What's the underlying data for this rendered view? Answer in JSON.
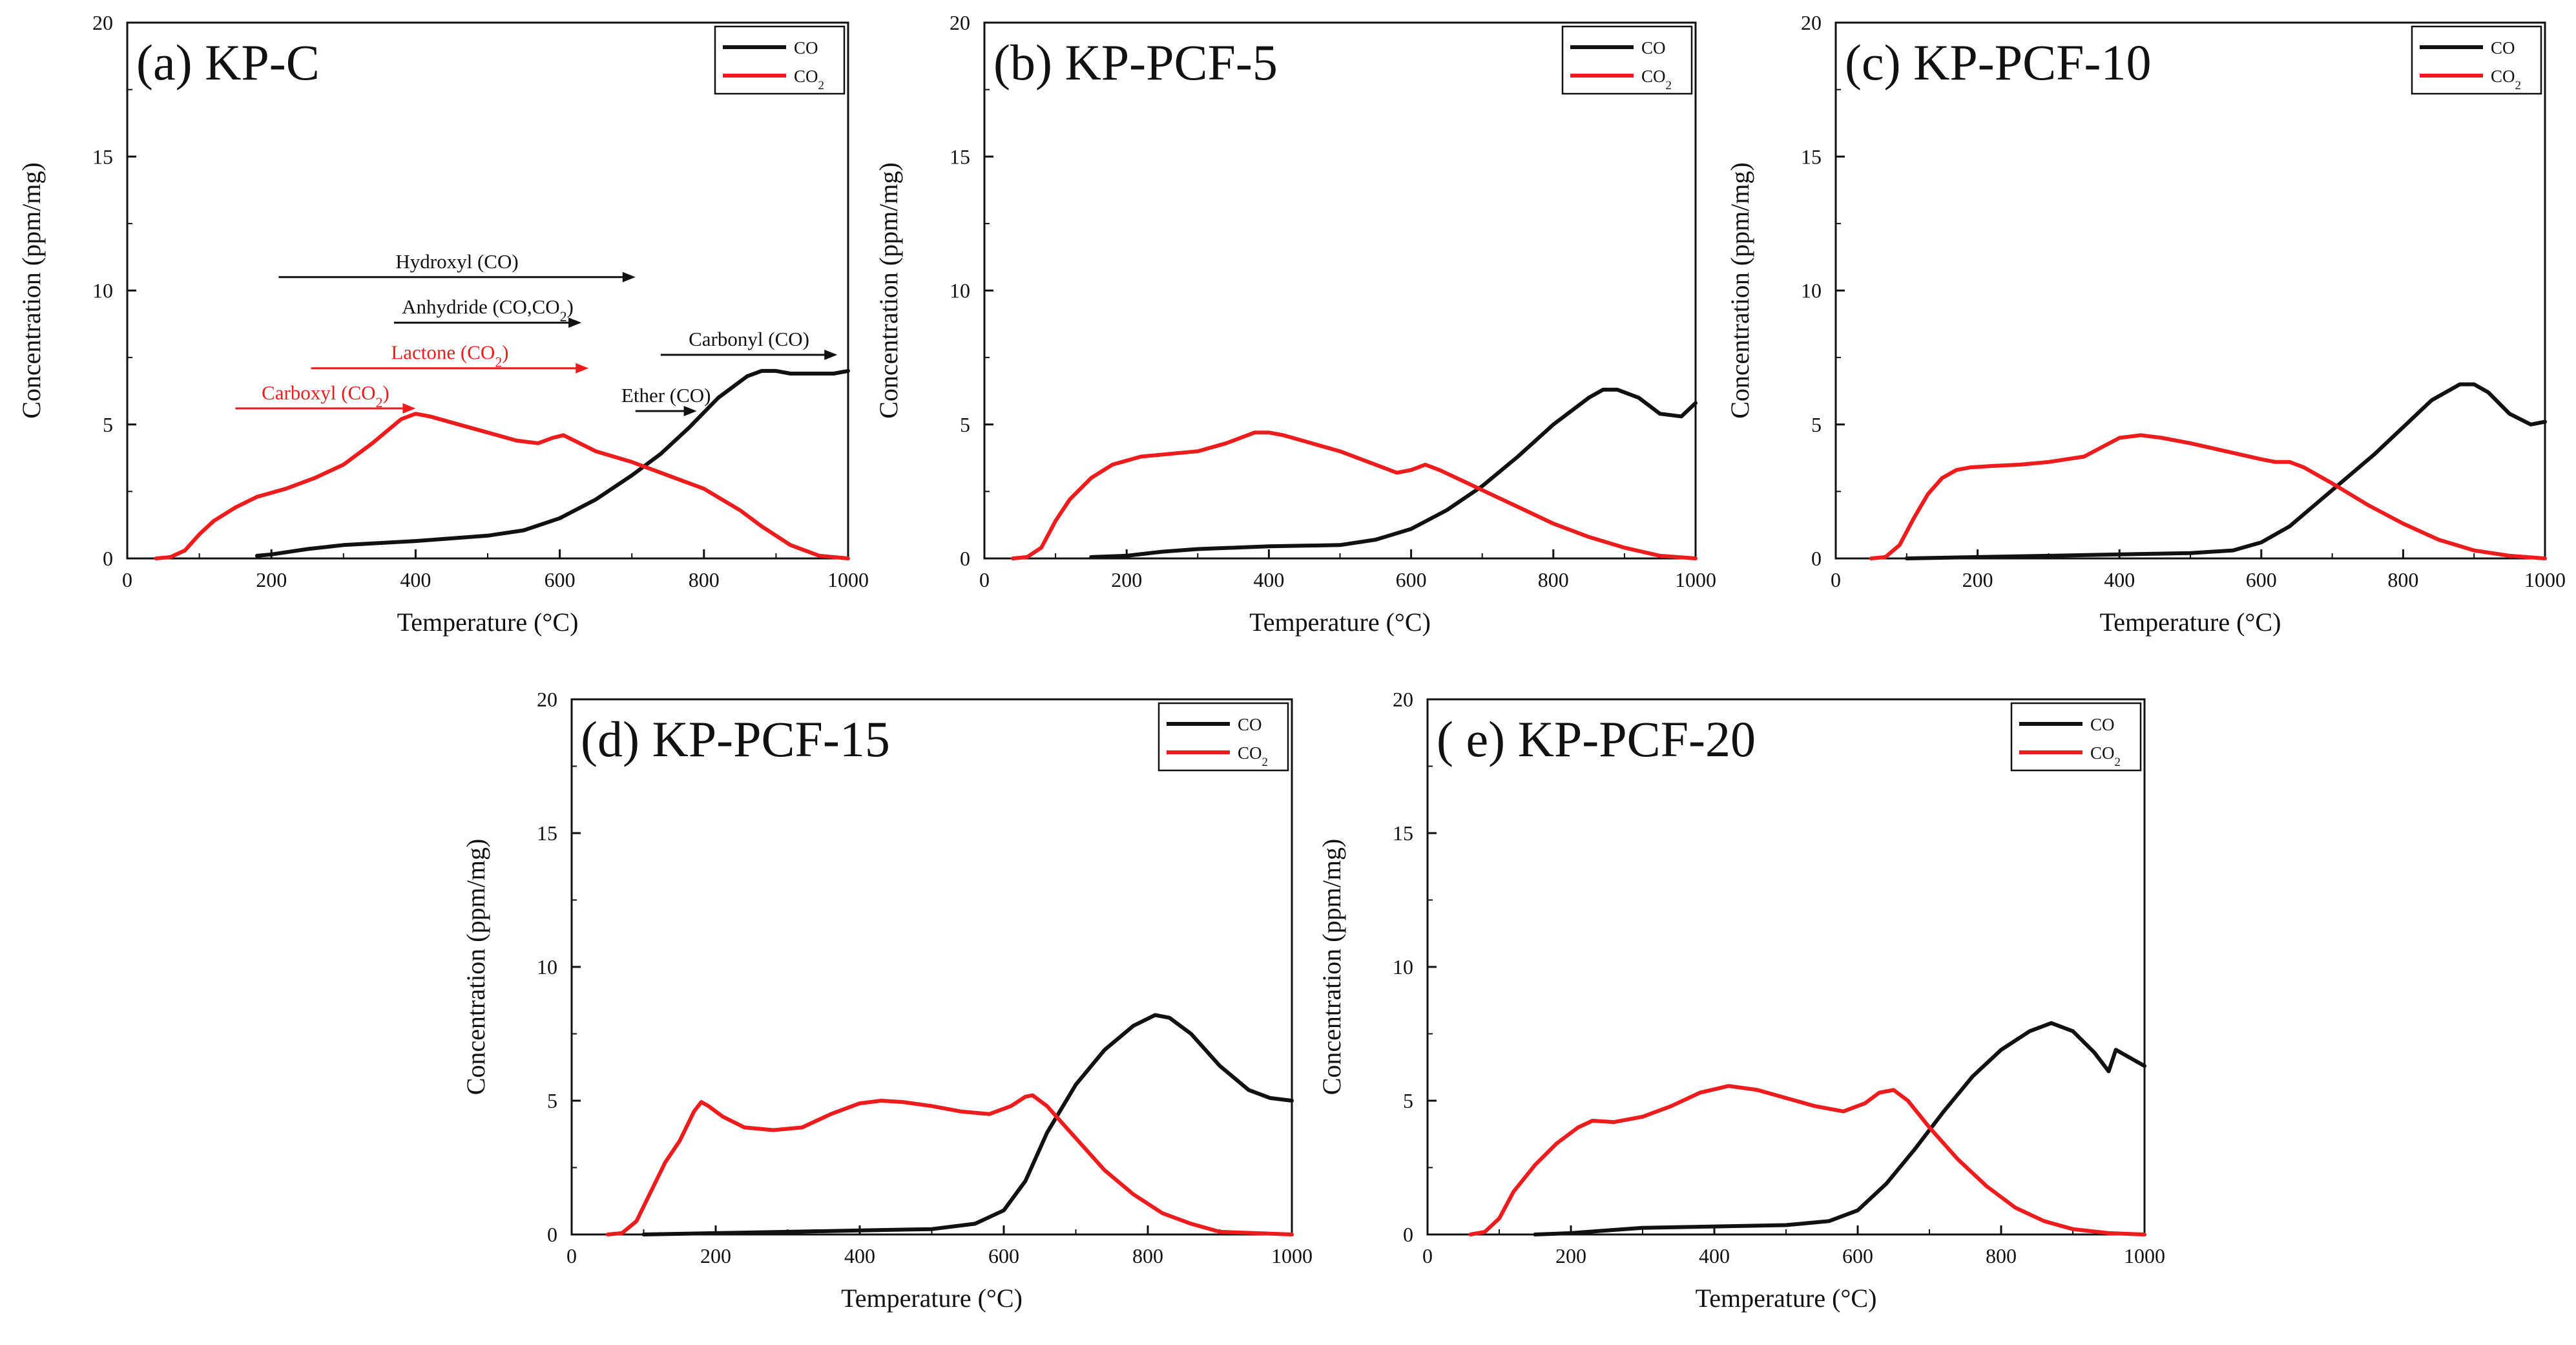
{
  "colors": {
    "co": "#111111",
    "co2": "#ee1c1c",
    "axis": "#111111",
    "annotation_black": "#111111",
    "annotation_red": "#ee1c1c"
  },
  "chart_data": [
    {
      "type": "line",
      "title": "(a) KP-C",
      "xlabel": "Temperature (°C)",
      "ylabel": "Concentration (ppm/mg)",
      "xlim": [
        0,
        1000
      ],
      "ylim": [
        0,
        20
      ],
      "xticks": [
        "0",
        "200",
        "400",
        "600",
        "800",
        "1000"
      ],
      "yticks": [
        "0",
        "5",
        "10",
        "15",
        "20"
      ],
      "legend": [
        "CO",
        "CO2"
      ],
      "legend_position": "top-right",
      "series": [
        {
          "name": "CO",
          "color": "#111111",
          "x": [
            180,
            200,
            250,
            300,
            400,
            500,
            550,
            600,
            650,
            700,
            740,
            780,
            820,
            860,
            880,
            900,
            920,
            940,
            960,
            980,
            1000
          ],
          "y": [
            0.1,
            0.15,
            0.35,
            0.5,
            0.65,
            0.85,
            1.05,
            1.5,
            2.2,
            3.1,
            3.9,
            4.9,
            6.0,
            6.8,
            7.0,
            7.0,
            6.9,
            6.9,
            6.9,
            6.9,
            7.0
          ]
        },
        {
          "name": "CO2",
          "color": "#ee1c1c",
          "x": [
            40,
            60,
            80,
            100,
            120,
            150,
            180,
            220,
            260,
            300,
            340,
            380,
            400,
            420,
            460,
            500,
            540,
            570,
            590,
            605,
            620,
            650,
            700,
            750,
            800,
            850,
            880,
            920,
            960,
            1000
          ],
          "y": [
            0,
            0.05,
            0.3,
            0.9,
            1.4,
            1.9,
            2.3,
            2.6,
            3.0,
            3.5,
            4.3,
            5.2,
            5.4,
            5.3,
            5.0,
            4.7,
            4.4,
            4.3,
            4.5,
            4.6,
            4.4,
            4.0,
            3.6,
            3.1,
            2.6,
            1.8,
            1.2,
            0.5,
            0.1,
            0
          ]
        }
      ],
      "annotations": [
        {
          "text": "Hydroxyl (CO)",
          "color": "#111111",
          "x_start": 210,
          "x_end": 705,
          "y": 10.5
        },
        {
          "text": "Anhydride (CO,CO₂)",
          "color": "#111111",
          "x_start": 370,
          "x_end": 630,
          "y": 8.8
        },
        {
          "text": "Lactone (CO₂)",
          "color": "#ee1c1c",
          "x_start": 255,
          "x_end": 640,
          "y": 7.1
        },
        {
          "text": "Carboxyl (CO₂)",
          "color": "#ee1c1c",
          "x_start": 150,
          "x_end": 400,
          "y": 5.6
        },
        {
          "text": "Ether (CO)",
          "color": "#111111",
          "x_start": 705,
          "x_end": 790,
          "y": 5.5
        },
        {
          "text": "Carbonyl (CO)",
          "color": "#111111",
          "x_start": 740,
          "x_end": 985,
          "y": 7.6
        }
      ]
    },
    {
      "type": "line",
      "title": "(b) KP-PCF-5",
      "xlabel": "Temperature (°C)",
      "ylabel": "Concentration (ppm/mg)",
      "xlim": [
        0,
        1000
      ],
      "ylim": [
        0,
        20
      ],
      "xticks": [
        "0",
        "200",
        "400",
        "600",
        "800",
        "1000"
      ],
      "yticks": [
        "0",
        "5",
        "10",
        "15",
        "20"
      ],
      "legend": [
        "CO",
        "CO2"
      ],
      "legend_position": "top-right",
      "series": [
        {
          "name": "CO",
          "color": "#111111",
          "x": [
            150,
            200,
            250,
            300,
            400,
            500,
            550,
            600,
            650,
            700,
            750,
            800,
            850,
            870,
            890,
            920,
            950,
            980,
            1000
          ],
          "y": [
            0.05,
            0.1,
            0.25,
            0.35,
            0.45,
            0.5,
            0.7,
            1.1,
            1.8,
            2.7,
            3.8,
            5.0,
            6.0,
            6.3,
            6.3,
            6.0,
            5.4,
            5.3,
            5.8
          ]
        },
        {
          "name": "CO2",
          "color": "#ee1c1c",
          "x": [
            40,
            60,
            80,
            100,
            120,
            150,
            180,
            220,
            260,
            300,
            340,
            380,
            400,
            420,
            460,
            500,
            540,
            580,
            600,
            620,
            640,
            680,
            720,
            760,
            800,
            850,
            900,
            950,
            1000
          ],
          "y": [
            0,
            0.05,
            0.4,
            1.4,
            2.2,
            3.0,
            3.5,
            3.8,
            3.9,
            4.0,
            4.3,
            4.7,
            4.7,
            4.6,
            4.3,
            4.0,
            3.6,
            3.2,
            3.3,
            3.5,
            3.3,
            2.8,
            2.3,
            1.8,
            1.3,
            0.8,
            0.4,
            0.1,
            0
          ]
        }
      ]
    },
    {
      "type": "line",
      "title": "(c) KP-PCF-10",
      "xlabel": "Temperature (°C)",
      "ylabel": "Concentration (ppm/mg)",
      "xlim": [
        0,
        1000
      ],
      "ylim": [
        0,
        20
      ],
      "xticks": [
        "0",
        "200",
        "400",
        "600",
        "800",
        "1000"
      ],
      "yticks": [
        "0",
        "5",
        "10",
        "15",
        "20"
      ],
      "legend": [
        "CO",
        "CO2"
      ],
      "legend_position": "top-right",
      "series": [
        {
          "name": "CO",
          "color": "#111111",
          "x": [
            100,
            200,
            300,
            400,
            500,
            560,
            600,
            640,
            680,
            720,
            760,
            800,
            840,
            880,
            900,
            920,
            950,
            980,
            1000
          ],
          "y": [
            0,
            0.05,
            0.1,
            0.15,
            0.2,
            0.3,
            0.6,
            1.2,
            2.1,
            3.0,
            3.9,
            4.9,
            5.9,
            6.5,
            6.5,
            6.2,
            5.4,
            5.0,
            5.1
          ]
        },
        {
          "name": "CO2",
          "color": "#ee1c1c",
          "x": [
            50,
            70,
            90,
            110,
            130,
            150,
            170,
            190,
            220,
            260,
            300,
            350,
            400,
            430,
            460,
            500,
            550,
            600,
            620,
            640,
            660,
            700,
            750,
            800,
            850,
            900,
            950,
            1000
          ],
          "y": [
            0,
            0.05,
            0.5,
            1.5,
            2.4,
            3.0,
            3.3,
            3.4,
            3.45,
            3.5,
            3.6,
            3.8,
            4.5,
            4.6,
            4.5,
            4.3,
            4.0,
            3.7,
            3.6,
            3.6,
            3.4,
            2.8,
            2.0,
            1.3,
            0.7,
            0.3,
            0.1,
            0
          ]
        }
      ]
    },
    {
      "type": "line",
      "title": "(d) KP-PCF-15",
      "xlabel": "Temperature (°C)",
      "ylabel": "Concentration (ppm/mg)",
      "xlim": [
        0,
        1000
      ],
      "ylim": [
        0,
        20
      ],
      "xticks": [
        "0",
        "200",
        "400",
        "600",
        "800",
        "1000"
      ],
      "yticks": [
        "0",
        "5",
        "10",
        "15",
        "20"
      ],
      "legend": [
        "CO",
        "CO2"
      ],
      "legend_position": "top-right",
      "series": [
        {
          "name": "CO",
          "color": "#111111",
          "x": [
            100,
            200,
            300,
            400,
            500,
            560,
            600,
            630,
            660,
            700,
            740,
            780,
            810,
            830,
            860,
            900,
            940,
            970,
            1000
          ],
          "y": [
            0,
            0.05,
            0.1,
            0.15,
            0.2,
            0.4,
            0.9,
            2.0,
            3.8,
            5.6,
            6.9,
            7.8,
            8.2,
            8.1,
            7.5,
            6.3,
            5.4,
            5.1,
            5.0
          ]
        },
        {
          "name": "CO2",
          "color": "#ee1c1c",
          "x": [
            50,
            70,
            90,
            110,
            130,
            150,
            170,
            180,
            190,
            210,
            240,
            280,
            320,
            360,
            400,
            430,
            460,
            500,
            540,
            580,
            610,
            630,
            640,
            660,
            700,
            740,
            780,
            820,
            860,
            900,
            950,
            1000
          ],
          "y": [
            0,
            0.05,
            0.5,
            1.6,
            2.7,
            3.5,
            4.6,
            4.95,
            4.8,
            4.4,
            4.0,
            3.9,
            4.0,
            4.5,
            4.9,
            5.0,
            4.95,
            4.8,
            4.6,
            4.5,
            4.8,
            5.15,
            5.2,
            4.8,
            3.6,
            2.4,
            1.5,
            0.8,
            0.4,
            0.1,
            0.05,
            0
          ]
        }
      ]
    },
    {
      "type": "line",
      "title": "( e) KP-PCF-20",
      "xlabel": "Temperature (°C)",
      "ylabel": "Concentration (ppm/mg)",
      "xlim": [
        0,
        1000
      ],
      "ylim": [
        0,
        20
      ],
      "xticks": [
        "0",
        "200",
        "400",
        "600",
        "800",
        "1000"
      ],
      "yticks": [
        "0",
        "5",
        "10",
        "15",
        "20"
      ],
      "legend": [
        "CO",
        "CO2"
      ],
      "legend_position": "top-right",
      "series": [
        {
          "name": "CO",
          "color": "#111111",
          "x": [
            150,
            200,
            250,
            300,
            400,
            500,
            560,
            600,
            640,
            680,
            720,
            760,
            800,
            840,
            870,
            900,
            930,
            950,
            960,
            980,
            1000
          ],
          "y": [
            0,
            0.05,
            0.15,
            0.25,
            0.3,
            0.35,
            0.5,
            0.9,
            1.9,
            3.2,
            4.6,
            5.9,
            6.9,
            7.6,
            7.9,
            7.6,
            6.8,
            6.1,
            6.9,
            6.6,
            6.3
          ]
        },
        {
          "name": "CO2",
          "color": "#ee1c1c",
          "x": [
            60,
            80,
            100,
            120,
            150,
            180,
            210,
            230,
            260,
            300,
            340,
            380,
            420,
            460,
            500,
            540,
            580,
            610,
            630,
            650,
            670,
            700,
            740,
            780,
            820,
            860,
            900,
            950,
            1000
          ],
          "y": [
            0,
            0.1,
            0.6,
            1.6,
            2.6,
            3.4,
            4.0,
            4.25,
            4.2,
            4.4,
            4.8,
            5.3,
            5.55,
            5.4,
            5.1,
            4.8,
            4.6,
            4.9,
            5.3,
            5.4,
            5.0,
            4.0,
            2.8,
            1.8,
            1.0,
            0.5,
            0.2,
            0.05,
            0
          ]
        }
      ]
    }
  ]
}
